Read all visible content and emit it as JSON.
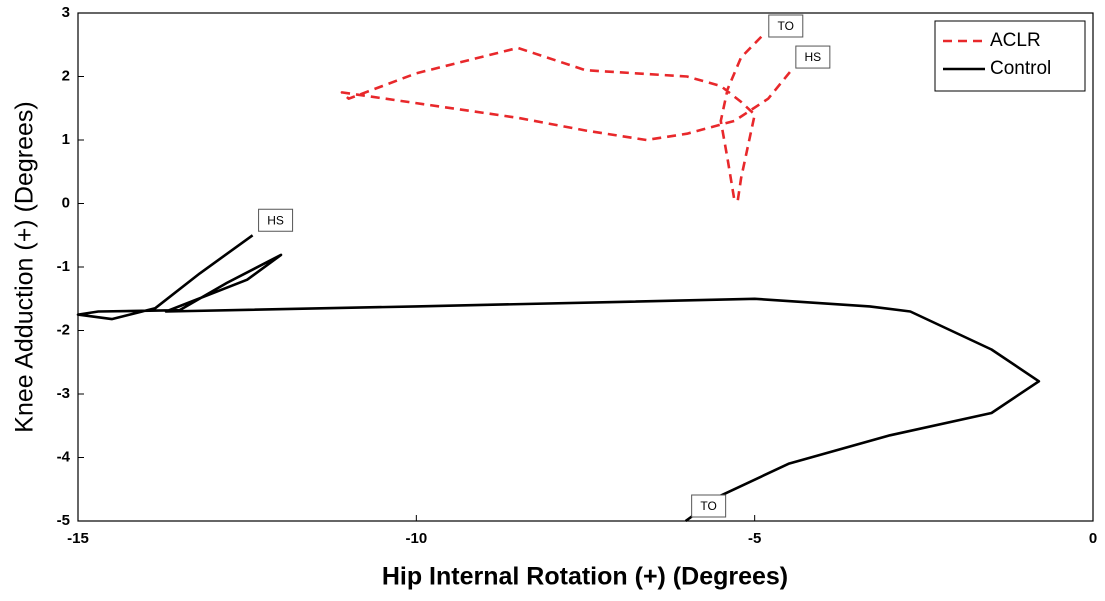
{
  "chart_data": {
    "type": "line",
    "xlabel": "Hip Internal Rotation (+) (Degrees)",
    "ylabel": "Knee Adduction (+) (Degrees)",
    "xlim": [
      -15,
      0
    ],
    "xticks": [
      -15,
      -10,
      -5,
      0
    ],
    "ylim": [
      -5,
      3
    ],
    "yticks": [
      -5,
      -4,
      -3,
      -2,
      -1,
      0,
      1,
      2,
      3
    ],
    "grid": false,
    "legend": "upper-right",
    "series": [
      {
        "name": "ACLR",
        "color": "#e8282b",
        "dash": true,
        "start_label": "HS",
        "end_label": "TO",
        "x": [
          -4.48,
          -4.8,
          -5.3,
          -6.0,
          -6.6,
          -7.5,
          -8.5,
          -9.8,
          -11.1,
          -11.0,
          -10.0,
          -8.5,
          -7.5,
          -6.0,
          -5.5,
          -5.2,
          -5.0,
          -5.1,
          -5.2,
          -5.25,
          -5.3,
          -5.4,
          -5.5,
          -5.4,
          -5.2,
          -4.88
        ],
        "y": [
          2.07,
          1.65,
          1.3,
          1.1,
          1.0,
          1.15,
          1.35,
          1.55,
          1.75,
          1.65,
          2.05,
          2.45,
          2.1,
          2.0,
          1.85,
          1.6,
          1.4,
          0.9,
          0.4,
          0.05,
          0.05,
          0.7,
          1.3,
          1.8,
          2.3,
          2.65
        ]
      },
      {
        "name": "Control",
        "color": "#000000",
        "dash": false,
        "start_label": "HS",
        "end_label": "TO",
        "x": [
          -12.42,
          -13.2,
          -13.86,
          -14.5,
          -15.0,
          -14.7,
          -13.5,
          -12.8,
          -12.0,
          -12.5,
          -13.7,
          -10.0,
          -7.0,
          -5.0,
          -3.3,
          -2.7,
          -1.5,
          -0.8,
          -1.5,
          -3.0,
          -4.5,
          -5.5,
          -6.02
        ],
        "y": [
          -0.5,
          -1.1,
          -1.65,
          -1.82,
          -1.75,
          -1.7,
          -1.68,
          -1.25,
          -0.81,
          -1.2,
          -1.7,
          -1.62,
          -1.55,
          -1.5,
          -1.62,
          -1.7,
          -2.3,
          -2.8,
          -3.3,
          -3.65,
          -4.1,
          -4.6,
          -5.0
        ]
      }
    ]
  }
}
